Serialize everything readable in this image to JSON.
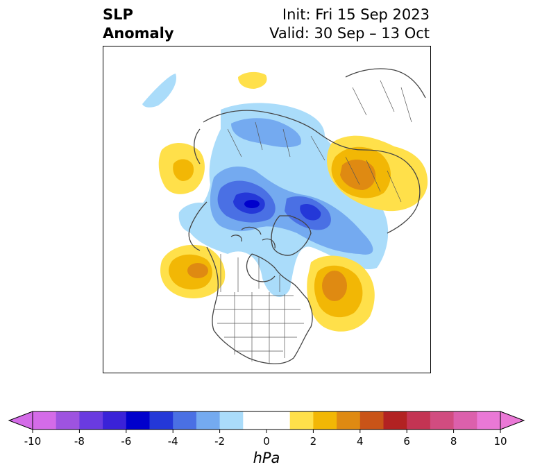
{
  "title": {
    "left_line1": "SLP",
    "left_line2": "Anomaly",
    "right_line1": "Init: Fri 15 Sep 2023",
    "right_line2": "Valid: 30 Sep – 13 Oct"
  },
  "colorbar": {
    "unit": "hPa",
    "ticks": [
      "-10",
      "-8",
      "-6",
      "-4",
      "-2",
      "0",
      "2",
      "4",
      "6",
      "8",
      "10"
    ],
    "min": -10,
    "max": 10,
    "step": 1,
    "colors": [
      "#d46be8",
      "#9e53e0",
      "#6a3be0",
      "#3a22d8",
      "#0000cc",
      "#2438d8",
      "#4a70e4",
      "#74aaf0",
      "#aadcfa",
      "#ffffff",
      "#ffffff",
      "#ffe04a",
      "#f2b705",
      "#df8a12",
      "#c95418",
      "#b22222",
      "#c43453",
      "#d14c80",
      "#dc60ac",
      "#ea78d6"
    ],
    "extend": "both"
  },
  "map": {
    "projection": "north-polar-stereographic",
    "region": "Northern Hemisphere / North America"
  }
}
